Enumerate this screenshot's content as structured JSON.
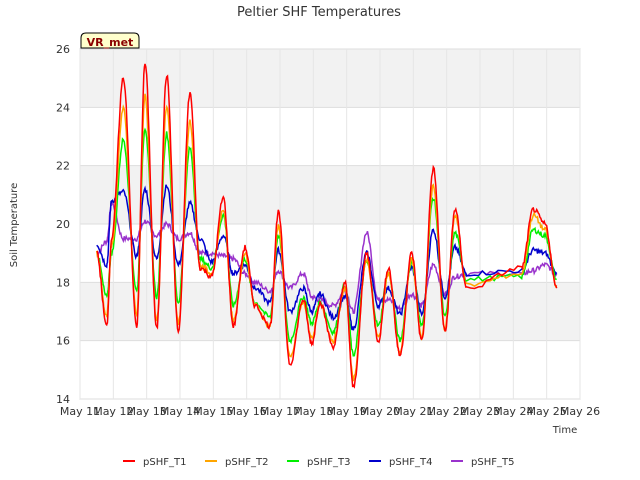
{
  "chart_data": {
    "type": "line",
    "title": "Peltier SHF Temperatures",
    "xlabel": "Time",
    "ylabel": "Soil Temperature",
    "ylim": [
      14,
      26
    ],
    "y_ticks": [
      "14",
      "16",
      "18",
      "20",
      "22",
      "24",
      "26"
    ],
    "x_ticks": [
      "May 11",
      "May 12",
      "May 13",
      "May 14",
      "May 15",
      "May 16",
      "May 17",
      "May 18",
      "May 19",
      "May 20",
      "May 21",
      "May 22",
      "May 23",
      "May 24",
      "May 25",
      "May 26"
    ],
    "xlim_days": [
      11,
      26
    ],
    "grid": true,
    "legend_position": "bottom",
    "badge": "VR_met",
    "series": [
      {
        "name": "pSHF_T1",
        "color": "#ff0000",
        "x": [
          11.5,
          11.8,
          11.95,
          12.3,
          12.7,
          12.95,
          13.3,
          13.6,
          13.95,
          14.3,
          14.6,
          14.95,
          15.3,
          15.6,
          15.95,
          16.25,
          16.7,
          16.95,
          17.3,
          17.7,
          17.95,
          18.2,
          18.6,
          18.95,
          19.2,
          19.6,
          19.95,
          20.25,
          20.6,
          20.95,
          21.25,
          21.6,
          21.95,
          22.25,
          22.6,
          22.95,
          23.25,
          23.6,
          23.95,
          24.25,
          24.6,
          24.95,
          25.3
        ],
        "y": [
          19.0,
          16.5,
          19.5,
          25.0,
          16.5,
          25.5,
          16.4,
          25.1,
          16.3,
          24.5,
          18.5,
          18.2,
          20.9,
          16.5,
          19.2,
          17.2,
          16.5,
          20.4,
          15.2,
          17.4,
          15.9,
          17.3,
          15.8,
          18.0,
          14.4,
          19.0,
          16.0,
          18.5,
          15.5,
          19.0,
          16.0,
          21.9,
          16.3,
          20.5,
          17.8,
          null,
          null,
          null,
          null,
          null,
          null,
          null,
          null
        ]
      },
      {
        "name": "pSHF_T2",
        "color": "#ffa500",
        "x": [
          11.5,
          11.8,
          11.95,
          12.3,
          12.7,
          12.95,
          13.3,
          13.6,
          13.95,
          14.3,
          14.6,
          14.95,
          15.3,
          15.6,
          15.95,
          16.25,
          16.7,
          16.95,
          17.3,
          17.7,
          17.95,
          18.2,
          18.6,
          18.95,
          19.2,
          19.6,
          19.95,
          20.25,
          20.6,
          20.95,
          21.25,
          21.6,
          21.95,
          22.25,
          22.6,
          22.95,
          23.25,
          23.6,
          23.95,
          24.25,
          24.6,
          24.95,
          25.3
        ],
        "y": [
          19.0,
          16.8,
          19.3,
          24.0,
          16.9,
          24.4,
          16.7,
          24.0,
          16.6,
          23.5,
          18.6,
          18.3,
          20.5,
          16.7,
          19.0,
          17.2,
          16.5,
          19.9,
          15.4,
          17.3,
          16.1,
          17.2,
          16.0,
          17.8,
          14.7,
          18.8,
          16.1,
          18.3,
          15.6,
          18.8,
          16.1,
          21.3,
          16.4,
          20.3,
          17.9,
          null,
          null,
          null,
          null,
          null,
          null,
          null,
          null
        ]
      },
      {
        "name": "pSHF_T3",
        "color": "#00ee00",
        "x": [
          11.5,
          11.8,
          11.95,
          12.3,
          12.7,
          12.95,
          13.3,
          13.6,
          13.95,
          14.3,
          14.6,
          14.95,
          15.3,
          15.6,
          15.95,
          16.25,
          16.7,
          16.95,
          17.3,
          17.7,
          17.95,
          18.2,
          18.6,
          18.95,
          19.2,
          19.6,
          19.95,
          20.25,
          20.6,
          20.95,
          21.25,
          21.6,
          21.95,
          22.25,
          22.6,
          22.95,
          23.25,
          23.6,
          23.95,
          24.25,
          24.6,
          24.95,
          25.3
        ],
        "y": [
          19.0,
          17.5,
          19.0,
          22.9,
          17.7,
          23.3,
          17.5,
          23.1,
          17.3,
          22.6,
          18.8,
          18.5,
          20.3,
          17.2,
          18.8,
          17.3,
          16.8,
          19.6,
          16.0,
          17.5,
          16.6,
          17.3,
          16.3,
          17.9,
          15.5,
          18.7,
          16.5,
          18.3,
          16.0,
          18.7,
          16.5,
          20.9,
          16.8,
          19.7,
          18.1,
          null,
          null,
          null,
          null,
          null,
          null,
          null,
          null
        ]
      },
      {
        "name": "pSHF_T4",
        "color": "#0000cc",
        "x": [
          11.5,
          11.8,
          11.95,
          12.3,
          12.7,
          12.95,
          13.3,
          13.6,
          13.95,
          14.3,
          14.6,
          14.95,
          15.3,
          15.6,
          15.95,
          16.25,
          16.7,
          16.95,
          17.3,
          17.7,
          17.95,
          18.2,
          18.6,
          18.95,
          19.2,
          19.6,
          19.95,
          20.25,
          20.6,
          20.95,
          21.25,
          21.6,
          21.95,
          22.25,
          22.6,
          22.95,
          23.25,
          23.6,
          23.95,
          24.25,
          24.6,
          24.95,
          25.3
        ],
        "y": [
          19.3,
          18.6,
          20.8,
          21.1,
          18.9,
          21.2,
          18.8,
          21.3,
          18.6,
          20.7,
          19.5,
          18.7,
          19.6,
          18.3,
          18.6,
          17.8,
          17.3,
          19.1,
          17.0,
          17.8,
          17.0,
          17.6,
          16.8,
          17.5,
          16.4,
          19.0,
          17.2,
          17.8,
          16.9,
          18.5,
          16.9,
          19.8,
          17.5,
          19.2,
          18.3,
          null,
          null,
          null,
          null,
          null,
          null,
          null,
          null
        ]
      },
      {
        "name": "pSHF_T5",
        "color": "#9932cc",
        "x": [
          11.5,
          11.8,
          11.95,
          12.3,
          12.7,
          12.95,
          13.3,
          13.6,
          13.95,
          14.3,
          14.6,
          14.95,
          15.3,
          15.6,
          15.95,
          16.25,
          16.7,
          16.95,
          17.3,
          17.7,
          17.95,
          18.2,
          18.6,
          18.95,
          19.2,
          19.6,
          19.95,
          20.25,
          20.6,
          20.95,
          21.25,
          21.6,
          21.95,
          22.25,
          22.6,
          22.95,
          23.25,
          23.6,
          23.95,
          24.25,
          24.6,
          24.95,
          25.3
        ],
        "y": [
          19.0,
          19.4,
          20.7,
          19.5,
          19.5,
          20.1,
          19.6,
          20.0,
          19.5,
          19.7,
          19.0,
          19.0,
          18.9,
          18.8,
          18.3,
          18.0,
          17.7,
          18.4,
          17.8,
          18.3,
          17.5,
          17.4,
          17.2,
          17.7,
          17.0,
          19.7,
          17.4,
          17.4,
          17.1,
          17.6,
          17.2,
          18.6,
          17.6,
          18.2,
          18.3,
          null,
          null,
          null,
          null,
          null,
          null,
          null,
          null
        ]
      }
    ]
  }
}
